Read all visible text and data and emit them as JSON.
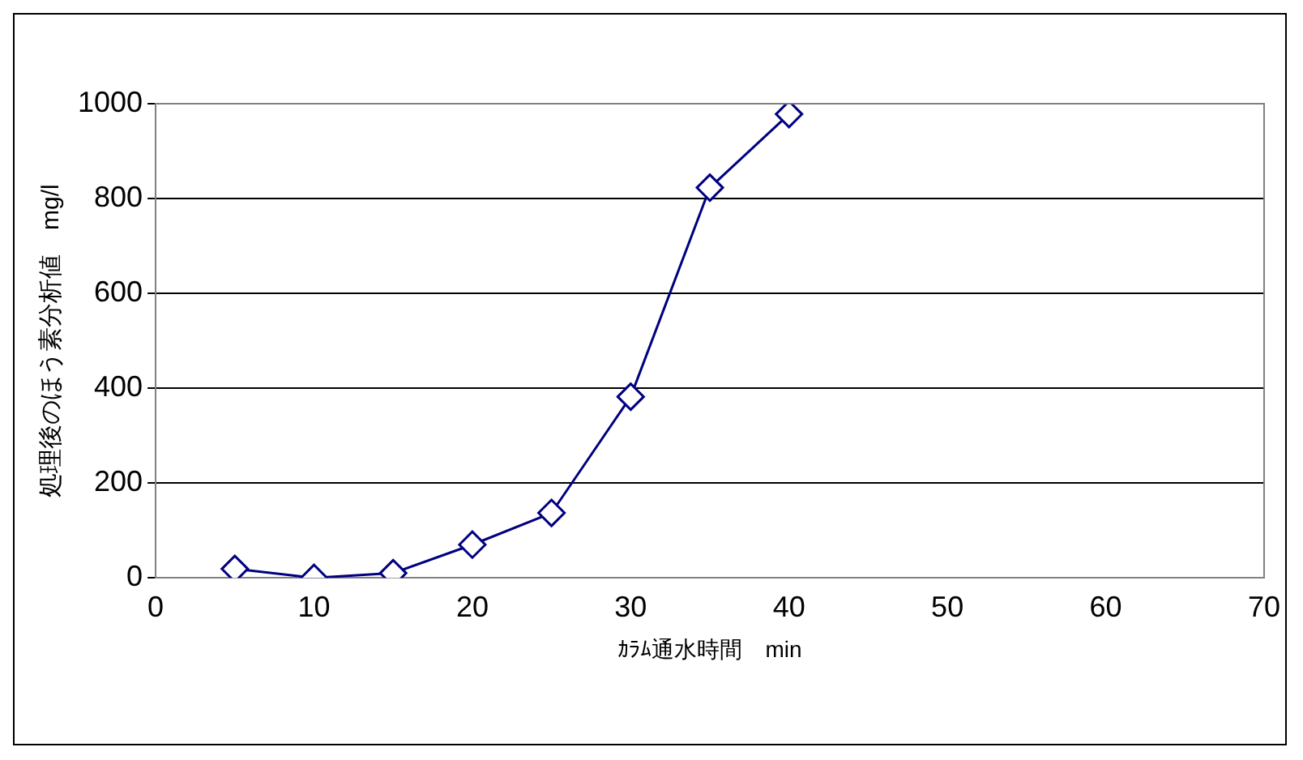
{
  "chart_data": {
    "type": "line",
    "xlabel": "ｶﾗﾑ通水時間　min",
    "ylabel": "処理後のほう素分析値　mg/l",
    "x": [
      5,
      10,
      15,
      20,
      25,
      30,
      35,
      40
    ],
    "series": [
      {
        "color": "#000080",
        "values": [
          19,
          0,
          10,
          70,
          137,
          382,
          823,
          978
        ]
      }
    ],
    "xlim": [
      0,
      70
    ],
    "xticks": [
      0,
      10,
      20,
      30,
      40,
      50,
      60,
      70
    ],
    "ylim": [
      0,
      1000
    ],
    "yticks": [
      0,
      200,
      400,
      600,
      800,
      1000
    ],
    "grid": "y",
    "legend": false,
    "marker": "diamond",
    "line_style": "solid"
  }
}
